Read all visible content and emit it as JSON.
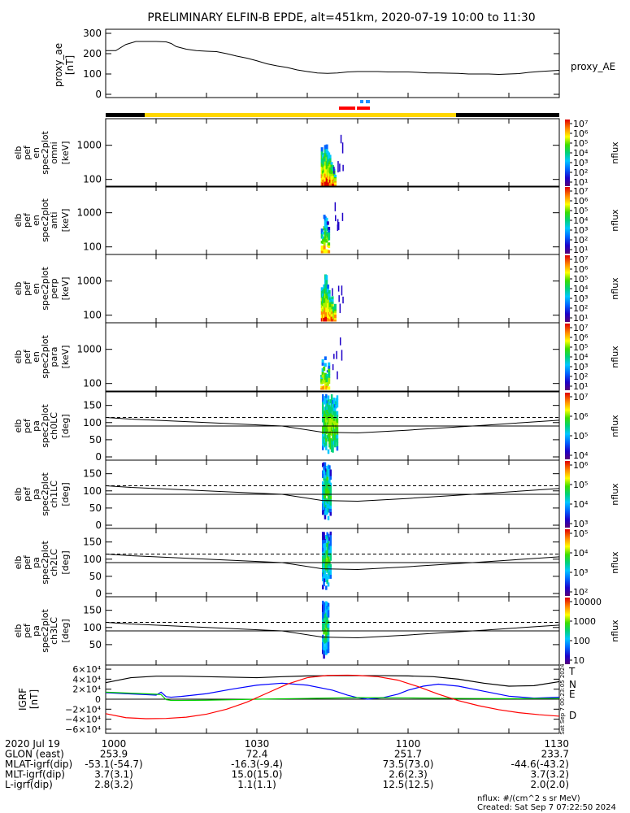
{
  "chart_data": {
    "title": "PRELIMINARY ELFIN-B EPDE, alt=451km, 2020-07-19 10:00 to 11:30",
    "type": "line",
    "x_range_minutes": [
      0,
      90
    ],
    "x_ticks": [
      "1000",
      "1030",
      "1100",
      "1130"
    ],
    "panels": [
      {
        "id": "proxy_ae",
        "type": "line",
        "ylabel": [
          "proxy_ae",
          "[nT]"
        ],
        "yticks": [
          "0",
          "100",
          "200",
          "300"
        ],
        "ylim": [
          0,
          320
        ],
        "legend": "proxy_AE",
        "series": [
          {
            "x": [
              0,
              2,
              4,
              6,
              8,
              10,
              12,
              13,
              14,
              16,
              18,
              20,
              22,
              24,
              26,
              28,
              30,
              32,
              34,
              36,
              38,
              40,
              42,
              44,
              46,
              48,
              50,
              52,
              54,
              56,
              58,
              60,
              62,
              64,
              66,
              68,
              70,
              72,
              74,
              76,
              78,
              80,
              82,
              84,
              86,
              88,
              90
            ],
            "y": [
              215,
              215,
              245,
              260,
              260,
              260,
              258,
              250,
              235,
              222,
              215,
              212,
              210,
              200,
              188,
              178,
              165,
              150,
              140,
              132,
              120,
              112,
              105,
              103,
              105,
              110,
              112,
              112,
              112,
              110,
              110,
              110,
              108,
              105,
              105,
              104,
              103,
              100,
              100,
              100,
              98,
              100,
              102,
              108,
              112,
              115,
              118
            ]
          }
        ]
      },
      {
        "id": "omni",
        "type": "heatmap",
        "ylabel": [
          "elb",
          "pef",
          "en",
          "spec2plot",
          "omni",
          "[keV]"
        ],
        "yticks": [
          "100",
          "1000"
        ],
        "cbar": [
          "10⁷",
          "10⁶",
          "10⁵",
          "10⁴",
          "10³",
          "10²",
          "10¹"
        ],
        "zlabel": "nflux"
      },
      {
        "id": "anti",
        "type": "heatmap",
        "ylabel": [
          "elb",
          "pef",
          "en",
          "spec2plot",
          "anti",
          "[keV]"
        ],
        "yticks": [
          "100",
          "1000"
        ],
        "cbar": [
          "10⁷",
          "10⁶",
          "10⁵",
          "10⁴",
          "10³",
          "10²",
          "10¹"
        ],
        "zlabel": "nflux"
      },
      {
        "id": "perp",
        "type": "heatmap",
        "ylabel": [
          "elb",
          "pef",
          "en",
          "spec2plot",
          "perp",
          "[keV]"
        ],
        "yticks": [
          "100",
          "1000"
        ],
        "cbar": [
          "10⁷",
          "10⁶",
          "10⁵",
          "10⁴",
          "10³",
          "10²",
          "10¹"
        ],
        "zlabel": "nflux"
      },
      {
        "id": "para",
        "type": "heatmap",
        "ylabel": [
          "elb",
          "pef",
          "en",
          "spec2plot",
          "para",
          "[keV]"
        ],
        "yticks": [
          "100",
          "1000"
        ],
        "cbar": [
          "10⁷",
          "10⁶",
          "10⁵",
          "10⁴",
          "10³",
          "10²",
          "10¹"
        ],
        "zlabel": "nflux"
      },
      {
        "id": "ch0LC",
        "type": "heatmap",
        "ylabel": [
          "elb",
          "pef",
          "pa",
          "spec2plot",
          "ch0LC",
          "[deg]"
        ],
        "yticks": [
          "0",
          "50",
          "100",
          "150"
        ],
        "cbar": [
          "10⁷",
          "10⁶",
          "10⁵",
          "10⁴"
        ],
        "zlabel": "nflux"
      },
      {
        "id": "ch1LC",
        "type": "heatmap",
        "ylabel": [
          "elb",
          "pef",
          "pa",
          "spec2plot",
          "ch1LC",
          "[deg]"
        ],
        "yticks": [
          "0",
          "50",
          "100",
          "150"
        ],
        "cbar": [
          "10⁶",
          "10⁵",
          "10⁴",
          "10³"
        ],
        "zlabel": "nflux"
      },
      {
        "id": "ch2LC",
        "type": "heatmap",
        "ylabel": [
          "elb",
          "pef",
          "pa",
          "spec2plot",
          "ch2LC",
          "[deg]"
        ],
        "yticks": [
          "0",
          "50",
          "100",
          "150"
        ],
        "cbar": [
          "10⁵",
          "10⁴",
          "10³",
          "10²"
        ],
        "zlabel": "nflux"
      },
      {
        "id": "ch3LC",
        "type": "heatmap",
        "ylabel": [
          "elb",
          "pef",
          "pa",
          "spec2plot",
          "ch3LC",
          "[deg]"
        ],
        "yticks": [
          "50",
          "100",
          "150"
        ],
        "cbar": [
          "10000",
          "1000",
          "100",
          "10"
        ],
        "zlabel": "nflux"
      },
      {
        "id": "igrf",
        "type": "line",
        "ylabel": [
          "IGRF",
          "[nT]"
        ],
        "yticks": [
          "6×10⁴",
          "4×10⁴",
          "2×10⁴",
          "0",
          "−2×10⁴",
          "−4×10⁴",
          "−6×10⁴"
        ],
        "ylim": [
          -65000,
          65000
        ],
        "legend": [
          "T",
          "N",
          "E",
          "D"
        ],
        "series": [
          {
            "name": "T",
            "color": "#000000",
            "x": [
              0,
              5,
              10,
              15,
              20,
              25,
              30,
              35,
              40,
              45,
              50,
              55,
              60,
              65,
              70,
              75,
              80,
              85,
              90
            ],
            "y": [
              33000,
              43000,
              46000,
              46000,
              45000,
              44000,
              43000,
              45000,
              46500,
              47000,
              47000,
              47000,
              46500,
              45000,
              40000,
              32000,
              26000,
              27000,
              35000
            ]
          },
          {
            "name": "N",
            "color": "#0000ff",
            "x": [
              0,
              4,
              8,
              10,
              11,
              12,
              13,
              15,
              20,
              25,
              30,
              35,
              40,
              45,
              48,
              50,
              52,
              55,
              58,
              60,
              63,
              66,
              70,
              75,
              80,
              85,
              90
            ],
            "y": [
              13000,
              11000,
              9000,
              8000,
              14000,
              5000,
              4000,
              5500,
              11000,
              20000,
              28000,
              32000,
              28000,
              18000,
              8000,
              3000,
              0,
              3000,
              10000,
              18000,
              26000,
              30000,
              26000,
              16000,
              6000,
              2000,
              4000
            ]
          },
          {
            "name": "E",
            "color": "#00cc00",
            "x": [
              0,
              5,
              10,
              11,
              12,
              13,
              15,
              20,
              30,
              40,
              50,
              60,
              70,
              80,
              90
            ],
            "y": [
              14000,
              12000,
              10000,
              9000,
              -1000,
              -2500,
              -2500,
              -2000,
              0,
              1500,
              3000,
              2500,
              1500,
              1000,
              1500
            ]
          },
          {
            "name": "D",
            "color": "#ff0000",
            "x": [
              0,
              4,
              8,
              12,
              16,
              20,
              24,
              28,
              32,
              36,
              40,
              44,
              48,
              50,
              54,
              58,
              62,
              66,
              70,
              74,
              78,
              82,
              86,
              90
            ],
            "y": [
              -29000,
              -37000,
              -39000,
              -38500,
              -36000,
              -30000,
              -20000,
              -6000,
              12000,
              30000,
              43000,
              47500,
              48000,
              47500,
              45000,
              38000,
              25000,
              10000,
              -3000,
              -13000,
              -21000,
              -27000,
              -31000,
              -34000
            ]
          }
        ],
        "side_text": "Sat Sep  7 00:23:05 2024"
      }
    ],
    "ephemeris": {
      "rows": [
        {
          "label": "2020 Jul 19",
          "values": [
            "1000",
            "1030",
            "1100",
            "1130"
          ]
        },
        {
          "label": "GLON (east)",
          "values": [
            "253.9",
            "72.4",
            "251.7",
            "233.7"
          ]
        },
        {
          "label": "MLAT-igrf(dip)",
          "values": [
            "-53.1(-54.7)",
            "-16.3(-9.4)",
            "73.5(73.0)",
            "-44.6(-43.2)"
          ]
        },
        {
          "label": "MLT-igrf(dip)",
          "values": [
            "3.7(3.1)",
            "15.0(15.0)",
            "2.6(2.3)",
            "3.7(3.2)"
          ]
        },
        {
          "label": "L-igrf(dip)",
          "values": [
            "2.8(3.2)",
            "1.1(1.1)",
            "12.5(12.5)",
            "2.0(2.0)"
          ]
        }
      ]
    },
    "footer": [
      "nflux: #/(cm^2 s sr MeV)",
      "Created: Sat Sep  7 07:22:50 2024"
    ]
  }
}
